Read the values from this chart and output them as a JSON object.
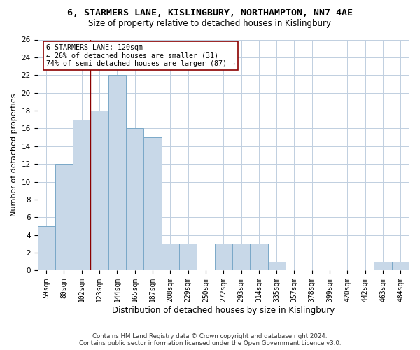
{
  "title1": "6, STARMERS LANE, KISLINGBURY, NORTHAMPTON, NN7 4AE",
  "title2": "Size of property relative to detached houses in Kislingbury",
  "xlabel": "Distribution of detached houses by size in Kislingbury",
  "ylabel": "Number of detached properties",
  "categories": [
    "59sqm",
    "80sqm",
    "102sqm",
    "123sqm",
    "144sqm",
    "165sqm",
    "187sqm",
    "208sqm",
    "229sqm",
    "250sqm",
    "272sqm",
    "293sqm",
    "314sqm",
    "335sqm",
    "357sqm",
    "378sqm",
    "399sqm",
    "420sqm",
    "442sqm",
    "463sqm",
    "484sqm"
  ],
  "values": [
    5,
    12,
    17,
    18,
    22,
    16,
    15,
    3,
    3,
    0,
    3,
    3,
    3,
    1,
    0,
    0,
    0,
    0,
    0,
    1,
    1
  ],
  "bar_color": "#c8d8e8",
  "bar_edge_color": "#7aa8c8",
  "grid_color": "#c0cfe0",
  "vline_x_idx": 2,
  "vline_color": "#8b0000",
  "annotation_line1": "6 STARMERS LANE: 120sqm",
  "annotation_line2": "← 26% of detached houses are smaller (31)",
  "annotation_line3": "74% of semi-detached houses are larger (87) →",
  "annotation_box_color": "#ffffff",
  "annotation_box_edge": "#8b0000",
  "footer1": "Contains HM Land Registry data © Crown copyright and database right 2024.",
  "footer2": "Contains public sector information licensed under the Open Government Licence v3.0.",
  "ylim": [
    0,
    26
  ],
  "yticks": [
    0,
    2,
    4,
    6,
    8,
    10,
    12,
    14,
    16,
    18,
    20,
    22,
    24,
    26
  ],
  "bg_color": "#ffffff",
  "title1_fontsize": 9.5,
  "title2_fontsize": 8.5,
  "xlabel_fontsize": 8.5,
  "ylabel_fontsize": 8.0,
  "tick_fontsize": 7.0,
  "footer_fontsize": 6.2,
  "annot_fontsize": 7.2
}
